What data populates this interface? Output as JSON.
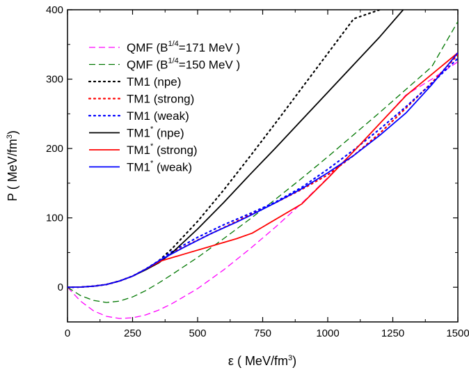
{
  "chart_data": {
    "type": "line",
    "xlabel": {
      "prefix": "ε ( MeV/fm",
      "sup": "3",
      "suffix": ")"
    },
    "ylabel": {
      "prefix": "P ( MeV/fm",
      "sup": "3",
      "suffix": ")"
    },
    "xlim": [
      0,
      1500
    ],
    "ylim": [
      -50,
      400
    ],
    "xticks": [
      0,
      250,
      500,
      750,
      1000,
      1250,
      1500
    ],
    "yticks": [
      0,
      100,
      200,
      300,
      400
    ],
    "grid": false,
    "legend_position": "top-left",
    "series": [
      {
        "name": "QMF (B1/4=171 MeV )",
        "label": {
          "pre": "QMF (B",
          "sup": "1/4",
          "post": "=171 MeV )"
        },
        "color": "#ff00ff",
        "dash": "dashed",
        "x": [
          0,
          50,
          100,
          150,
          200,
          250,
          300,
          350,
          400,
          450,
          500,
          600,
          700,
          800,
          900,
          1000,
          1100,
          1200,
          1300,
          1400,
          1500
        ],
        "y": [
          0,
          -20,
          -34,
          -42,
          -45,
          -44,
          -40,
          -33,
          -24,
          -13,
          -2,
          25,
          55,
          87,
          121,
          158,
          196,
          236,
          277,
          300,
          325
        ]
      },
      {
        "name": "QMF (B1/4=150 MeV )",
        "label": {
          "pre": "QMF (B",
          "sup": "1/4",
          "post": "=150 MeV )"
        },
        "color": "#007700",
        "dash": "dashed",
        "x": [
          0,
          50,
          100,
          150,
          200,
          250,
          300,
          350,
          400,
          500,
          600,
          700,
          800,
          900,
          1000,
          1100,
          1200,
          1300,
          1400,
          1500
        ],
        "y": [
          0,
          -12,
          -19,
          -22,
          -20,
          -14,
          -5,
          6,
          18,
          43,
          70,
          98,
          127,
          157,
          188,
          220,
          252,
          285,
          318,
          383
        ]
      },
      {
        "name": "TM1 (npe)",
        "label": {
          "pre": "TM1  (npe)",
          "sup": "",
          "post": ""
        },
        "color": "#000000",
        "dash": "dotted",
        "x": [
          0,
          50,
          100,
          150,
          200,
          250,
          300,
          350,
          400,
          500,
          600,
          700,
          800,
          900,
          1000,
          1100,
          1200
        ],
        "y": [
          0,
          0.2,
          1.5,
          4,
          9,
          16,
          26,
          38,
          55,
          95,
          140,
          188,
          237,
          287,
          337,
          387,
          400
        ]
      },
      {
        "name": "TM1 (strong)",
        "label": {
          "pre": "TM1  (strong)",
          "sup": "",
          "post": ""
        },
        "color": "#ff0000",
        "dash": "dotted",
        "x": [
          0,
          50,
          100,
          150,
          200,
          250,
          300,
          350,
          400,
          500,
          600,
          700,
          800,
          900,
          1000,
          1100,
          1200,
          1300,
          1400,
          1500
        ],
        "y": [
          0,
          0.2,
          1.5,
          4,
          9,
          16,
          26,
          37,
          49,
          68,
          86,
          104,
          122,
          141,
          162,
          190,
          222,
          258,
          295,
          335
        ]
      },
      {
        "name": "TM1 (weak)",
        "label": {
          "pre": "TM1  (weak)",
          "sup": "",
          "post": ""
        },
        "color": "#0000ff",
        "dash": "dotted",
        "x": [
          0,
          50,
          100,
          150,
          200,
          250,
          300,
          350,
          400,
          500,
          600,
          700,
          800,
          900,
          1000,
          1100,
          1200,
          1300,
          1400,
          1500
        ],
        "y": [
          0,
          0.2,
          1.5,
          4,
          9,
          16,
          26,
          38,
          51,
          72,
          90,
          106,
          123,
          144,
          170,
          198,
          228,
          260,
          294,
          330
        ]
      },
      {
        "name": "TM1* (npe)",
        "label": {
          "pre": "TM1",
          "sup": "*",
          "post": " (npe)"
        },
        "color": "#000000",
        "dash": "solid",
        "x": [
          0,
          50,
          100,
          150,
          200,
          250,
          300,
          350,
          400,
          500,
          600,
          700,
          800,
          900,
          1000,
          1100,
          1200,
          1290
        ],
        "y": [
          0,
          0.2,
          1.5,
          4,
          9,
          16,
          25,
          35,
          49,
          84,
          122,
          162,
          201,
          241,
          281,
          321,
          361,
          400
        ]
      },
      {
        "name": "TM1* (strong)",
        "label": {
          "pre": "TM1",
          "sup": "*",
          "post": " (strong)"
        },
        "color": "#ff0000",
        "dash": "solid",
        "x": [
          0,
          50,
          100,
          150,
          200,
          250,
          300,
          360,
          450,
          550,
          650,
          710,
          900,
          1000,
          1100,
          1200,
          1300,
          1400,
          1500
        ],
        "y": [
          0,
          0.2,
          1.5,
          4,
          9,
          16,
          26,
          38,
          48,
          59,
          70,
          78,
          120,
          157,
          196,
          236,
          276,
          307,
          338
        ]
      },
      {
        "name": "TM1* (weak)",
        "label": {
          "pre": "TM1",
          "sup": "*",
          "post": " (weak)"
        },
        "color": "#0000ff",
        "dash": "solid",
        "x": [
          0,
          50,
          100,
          150,
          200,
          250,
          300,
          360,
          450,
          550,
          650,
          700,
          800,
          900,
          1000,
          1100,
          1200,
          1300,
          1400,
          1500
        ],
        "y": [
          0,
          0.2,
          1.5,
          4,
          9,
          16,
          26,
          40,
          58,
          77,
          94,
          103,
          122,
          142,
          165,
          190,
          219,
          251,
          292,
          338
        ]
      }
    ]
  }
}
